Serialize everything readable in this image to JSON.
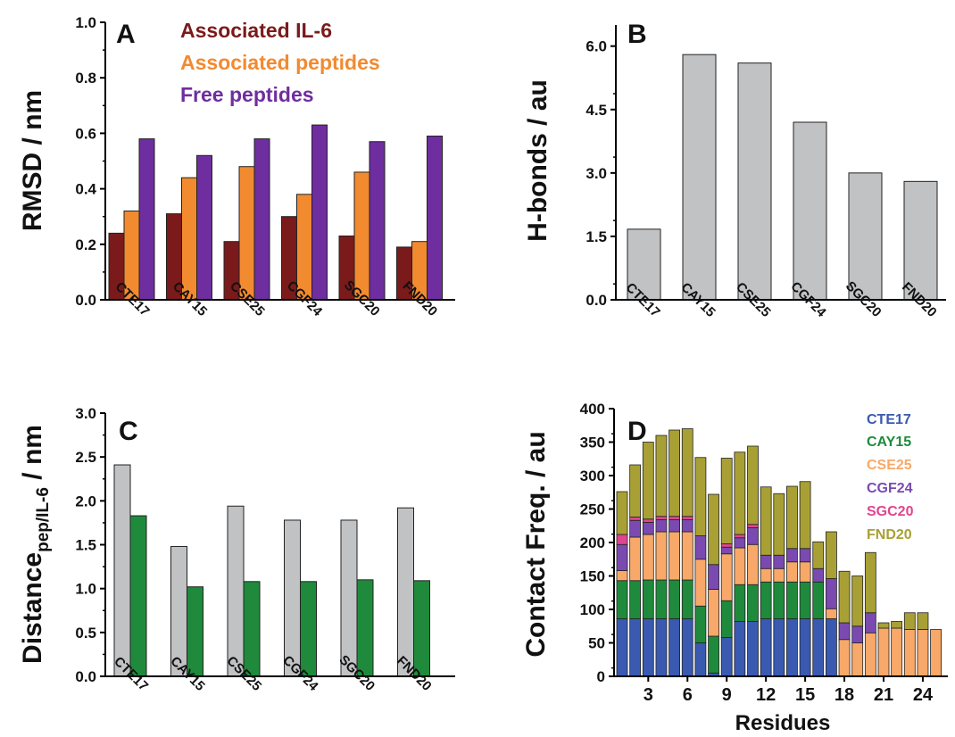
{
  "chart_data": [
    {
      "type": "bar",
      "panel_label": "A",
      "categories": [
        "CTE17",
        "CAY15",
        "CSE25",
        "CGF24",
        "SGC20",
        "FND20"
      ],
      "series": [
        {
          "name": "Associated IL-6",
          "color": "#7b1a1a",
          "values": [
            0.24,
            0.31,
            0.21,
            0.3,
            0.23,
            0.19
          ]
        },
        {
          "name": "Associated peptides",
          "color": "#f28a30",
          "values": [
            0.32,
            0.44,
            0.48,
            0.38,
            0.46,
            0.21
          ]
        },
        {
          "name": "Free peptides",
          "color": "#6f2ea0",
          "values": [
            0.58,
            0.52,
            0.58,
            0.63,
            0.57,
            0.59
          ]
        }
      ],
      "ylabel": "RMSD / nm",
      "ylim": [
        0,
        1.0
      ],
      "yticks": [
        "0.0",
        "0.2",
        "0.4",
        "0.6",
        "0.8",
        "1.0"
      ],
      "legend": "top-left"
    },
    {
      "type": "bar",
      "panel_label": "B",
      "categories": [
        "CTE17",
        "CAY15",
        "CSE25",
        "CGF24",
        "SGC20",
        "FND20"
      ],
      "series": [
        {
          "color": "#c0c2c4",
          "values": [
            1.67,
            5.8,
            5.6,
            4.2,
            3.0,
            2.8
          ]
        }
      ],
      "ylabel": "H-bonds / au",
      "ylim": [
        0,
        6.5
      ],
      "yticks": [
        "0.0",
        "1.5",
        "3.0",
        "4.5",
        "6.0"
      ]
    },
    {
      "type": "bar",
      "panel_label": "C",
      "categories": [
        "CTE17",
        "CAY15",
        "CSE25",
        "CGF24",
        "SGC20",
        "FND20"
      ],
      "series": [
        {
          "color": "#c0c2c4",
          "values": [
            2.41,
            1.48,
            1.94,
            1.78,
            1.78,
            1.92
          ]
        },
        {
          "color": "#1f8a3c",
          "values": [
            1.83,
            1.02,
            1.08,
            1.08,
            1.1,
            1.09
          ]
        }
      ],
      "ylabel_main": "Distance",
      "ylabel_sub": "pep/IL-6",
      "ylabel_unit": " / nm",
      "ylim": [
        0,
        3.0
      ],
      "yticks": [
        "0.0",
        "0.5",
        "1.0",
        "1.5",
        "2.0",
        "2.5",
        "3.0"
      ]
    },
    {
      "type": "bar",
      "panel_label": "D",
      "stacked": true,
      "x": [
        1,
        2,
        3,
        4,
        5,
        6,
        7,
        8,
        9,
        10,
        11,
        12,
        13,
        14,
        15,
        16,
        17,
        18,
        19,
        20,
        21,
        22,
        23,
        24,
        25
      ],
      "series": [
        {
          "name": "CTE17",
          "color": "#3a59b0",
          "values": [
            86,
            86,
            86,
            86,
            86,
            86,
            50,
            5,
            58,
            82,
            82,
            86,
            86,
            86,
            86,
            86,
            86,
            0,
            0,
            0,
            0,
            0,
            0,
            0,
            0
          ]
        },
        {
          "name": "CAY15",
          "color": "#1f8a3c",
          "values": [
            57,
            57,
            58,
            58,
            58,
            58,
            55,
            55,
            55,
            55,
            55,
            55,
            55,
            55,
            55,
            55,
            0,
            0,
            0,
            0,
            0,
            0,
            0,
            0,
            0
          ]
        },
        {
          "name": "CSE25",
          "color": "#f8a868",
          "values": [
            15,
            65,
            68,
            72,
            72,
            72,
            70,
            70,
            70,
            55,
            60,
            20,
            20,
            30,
            30,
            0,
            15,
            55,
            50,
            65,
            72,
            72,
            70,
            70,
            70
          ]
        },
        {
          "name": "CGF24",
          "color": "#7a4ab0",
          "values": [
            39,
            25,
            18,
            18,
            18,
            18,
            35,
            37,
            10,
            15,
            25,
            20,
            20,
            20,
            20,
            20,
            45,
            25,
            25,
            30,
            0,
            0,
            0,
            0,
            0
          ]
        },
        {
          "name": "SGC20",
          "color": "#e0458f",
          "values": [
            15,
            5,
            5,
            5,
            5,
            5,
            0,
            0,
            5,
            5,
            5,
            0,
            0,
            0,
            0,
            0,
            0,
            0,
            0,
            0,
            0,
            0,
            0,
            0,
            0
          ]
        },
        {
          "name": "FND20",
          "color": "#a8a035",
          "values": [
            64,
            78,
            115,
            121,
            129,
            131,
            117,
            105,
            128,
            123,
            117,
            102,
            92,
            93,
            100,
            40,
            70,
            77,
            75,
            90,
            8,
            10,
            25,
            25,
            0
          ]
        }
      ],
      "xlabel": "Residues",
      "ylabel": "Contact Freq. / au",
      "ylim": [
        0,
        400
      ],
      "yticks": [
        "0",
        "50",
        "100",
        "150",
        "200",
        "250",
        "300",
        "350",
        "400"
      ],
      "xticks": [
        "3",
        "6",
        "9",
        "12",
        "15",
        "18",
        "21",
        "24"
      ],
      "legend": "top-right"
    }
  ]
}
